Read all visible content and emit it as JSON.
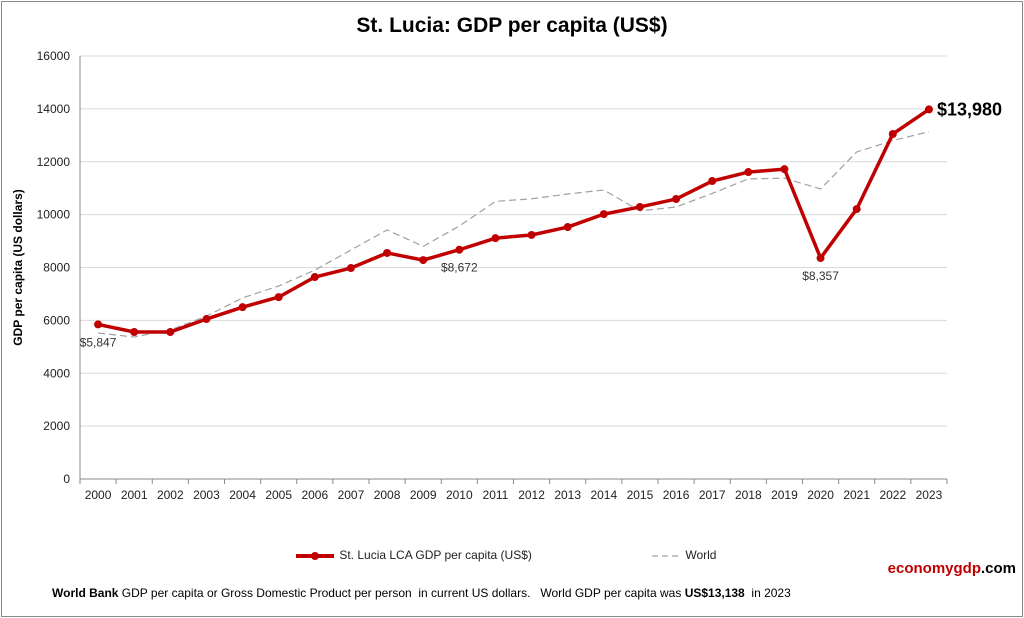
{
  "chart_data": {
    "type": "line",
    "title": "St. Lucia: GDP per capita (US$)",
    "ylabel": "GDP per capita (US dollars)",
    "xlabel": "",
    "ylim": [
      0,
      16000
    ],
    "yticks": [
      0,
      2000,
      4000,
      6000,
      8000,
      10000,
      12000,
      14000,
      16000
    ],
    "grid": true,
    "legend_placement": "bottom",
    "categories": [
      "2000",
      "2001",
      "2002",
      "2003",
      "2004",
      "2005",
      "2006",
      "2007",
      "2008",
      "2009",
      "2010",
      "2011",
      "2012",
      "2013",
      "2014",
      "2015",
      "2016",
      "2017",
      "2018",
      "2019",
      "2020",
      "2021",
      "2022",
      "2023"
    ],
    "series": [
      {
        "name": "St. Lucia LCA GDP per capita (US$)",
        "color": "#c00000",
        "style": "solid-markers",
        "values": [
          5847,
          5560,
          5560,
          6050,
          6500,
          6880,
          7640,
          7980,
          8550,
          8280,
          8672,
          9110,
          9230,
          9530,
          10020,
          10290,
          10590,
          11270,
          11610,
          11720,
          8357,
          10210,
          13050,
          13980
        ]
      },
      {
        "name": "World",
        "color": "#a0a0a0",
        "style": "dashed",
        "values": [
          5520,
          5370,
          5640,
          6160,
          6850,
          7300,
          7900,
          8660,
          9420,
          8800,
          9570,
          10500,
          10600,
          10780,
          10930,
          10140,
          10290,
          10800,
          11350,
          11380,
          10970,
          12370,
          12800,
          13138
        ]
      }
    ],
    "annotations": [
      {
        "category": "2000",
        "text": "$5,847"
      },
      {
        "category": "2010",
        "text": "$8,672"
      },
      {
        "category": "2020",
        "text": "$8,357"
      },
      {
        "category": "2023",
        "text": "$13,980"
      }
    ]
  },
  "footer": {
    "source_bold": "World Bank",
    "description": " GDP per capita or Gross Domestic Product per person  in current US dollars.   World GDP per capita was ",
    "world_value": "US$13,138",
    "year_text": "  in 2023"
  },
  "brand": {
    "part1": "economygdp",
    "part2": ".com"
  }
}
